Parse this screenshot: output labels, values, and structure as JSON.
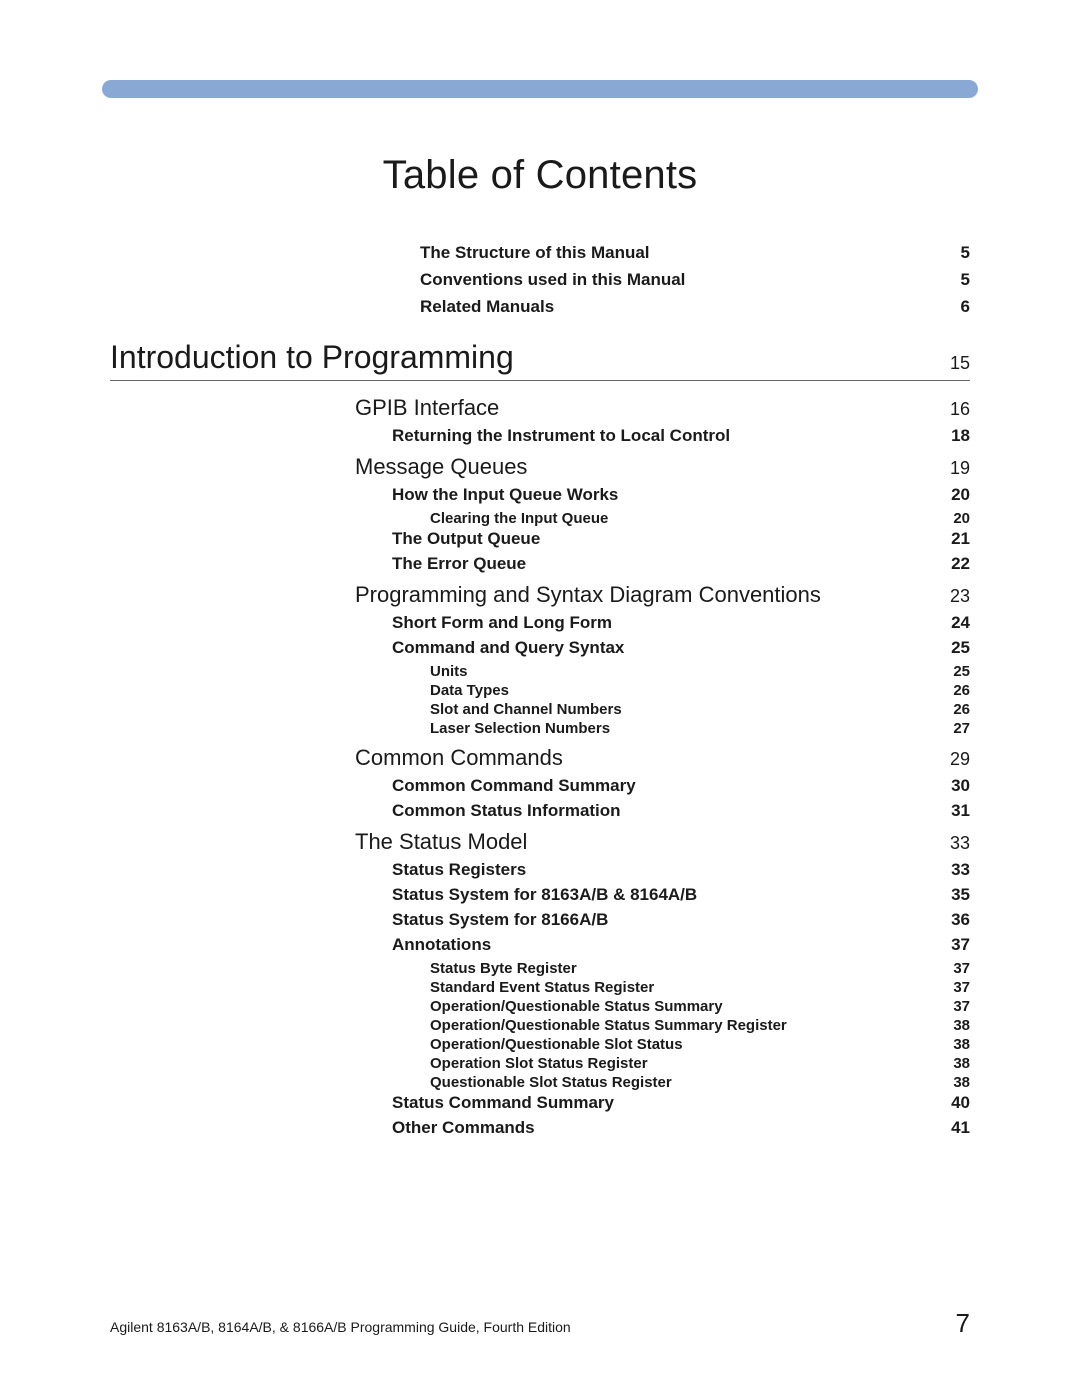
{
  "colors": {
    "top_bar": "#8aa8d4",
    "text": "#1a1a1a",
    "rule": "#666666",
    "background": "#ffffff"
  },
  "title": "Table of Contents",
  "intro": [
    {
      "label": "The Structure of this Manual",
      "page": "5"
    },
    {
      "label": "Conventions used in this Manual",
      "page": "5"
    },
    {
      "label": "Related Manuals",
      "page": "6"
    }
  ],
  "chapter": {
    "label": "Introduction to Programming",
    "page": "15"
  },
  "sections": {
    "gpib": {
      "label": "GPIB Interface",
      "page": "16"
    },
    "gpib_returning": {
      "label": "Returning the Instrument to Local Control",
      "page": "18"
    },
    "mq": {
      "label": "Message Queues",
      "page": "19"
    },
    "mq_how": {
      "label": "How the Input Queue Works",
      "page": "20"
    },
    "mq_clear": {
      "label": "Clearing the Input Queue",
      "page": "20"
    },
    "mq_out": {
      "label": "The Output Queue",
      "page": "21"
    },
    "mq_err": {
      "label": "The Error Queue",
      "page": "22"
    },
    "psdc": {
      "label": "Programming and Syntax Diagram Conventions",
      "page": "23"
    },
    "psdc_sflf": {
      "label": "Short Form and Long Form",
      "page": "24"
    },
    "psdc_cqs": {
      "label": "Command and Query Syntax",
      "page": "25"
    },
    "psdc_units": {
      "label": "Units",
      "page": "25"
    },
    "psdc_dt": {
      "label": "Data Types",
      "page": "26"
    },
    "psdc_scn": {
      "label": "Slot and Channel Numbers",
      "page": "26"
    },
    "psdc_lsn": {
      "label": "Laser Selection Numbers",
      "page": "27"
    },
    "cc": {
      "label": "Common Commands",
      "page": "29"
    },
    "cc_sum": {
      "label": "Common Command Summary",
      "page": "30"
    },
    "cc_stat": {
      "label": "Common Status Information",
      "page": "31"
    },
    "sm": {
      "label": "The Status Model",
      "page": "33"
    },
    "sm_sr": {
      "label": "Status Registers",
      "page": "33"
    },
    "sm_ss8163": {
      "label": "Status System for 8163A/B & 8164A/B",
      "page": "35"
    },
    "sm_ss8166": {
      "label": "Status System for 8166A/B",
      "page": "36"
    },
    "sm_ann": {
      "label": "Annotations",
      "page": "37"
    },
    "sm_sbr": {
      "label": "Status Byte Register",
      "page": "37"
    },
    "sm_sesr": {
      "label": "Standard Event Status Register",
      "page": "37"
    },
    "sm_oqss": {
      "label": "Operation/Questionable Status Summary",
      "page": "37"
    },
    "sm_oqssr": {
      "label": "Operation/Questionable Status Summary Register",
      "page": "38"
    },
    "sm_oqsls": {
      "label": "Operation/Questionable Slot Status",
      "page": "38"
    },
    "sm_ossr": {
      "label": "Operation Slot Status Register",
      "page": "38"
    },
    "sm_qssr": {
      "label": "Questionable Slot Status Register",
      "page": "38"
    },
    "sm_scs": {
      "label": "Status Command Summary",
      "page": "40"
    },
    "sm_oc": {
      "label": "Other Commands",
      "page": "41"
    }
  },
  "footer": {
    "text": "Agilent 8163A/B, 8164A/B, & 8166A/B Programming Guide, Fourth Edition",
    "page": "7"
  }
}
